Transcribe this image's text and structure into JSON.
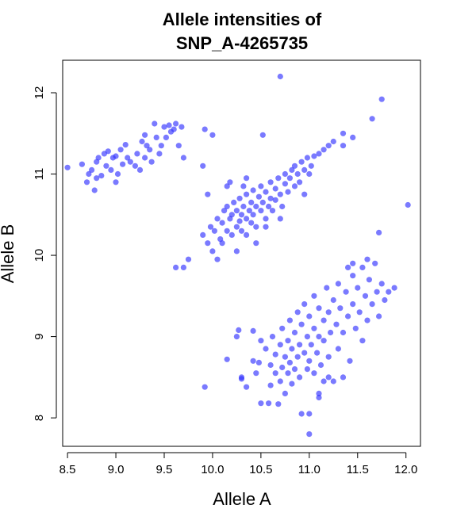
{
  "chart_data": {
    "type": "scatter",
    "title": [
      "Allele intensities of",
      "SNP_A-4265735"
    ],
    "xlabel": "Allele A",
    "ylabel": "Allele B",
    "xlim": [
      8.45,
      12.15
    ],
    "ylim": [
      7.65,
      12.4
    ],
    "x_ticks": [
      8.5,
      9.0,
      9.5,
      10.0,
      10.5,
      11.0,
      11.5,
      12.0
    ],
    "x_tick_labels": [
      "8.5",
      "9.0",
      "9.5",
      "10.0",
      "10.5",
      "11.0",
      "11.5",
      "12.0"
    ],
    "y_ticks": [
      8,
      9,
      10,
      11,
      12
    ],
    "y_tick_labels": [
      "8",
      "9",
      "10",
      "11",
      "12"
    ],
    "grid": false,
    "point_color": "#3333ff",
    "series": [
      {
        "points": [
          [
            8.5,
            11.08
          ],
          [
            8.65,
            11.12
          ],
          [
            8.7,
            10.9
          ],
          [
            8.72,
            11.0
          ],
          [
            8.75,
            11.05
          ],
          [
            8.78,
            10.8
          ],
          [
            8.8,
            10.95
          ],
          [
            8.8,
            11.15
          ],
          [
            8.82,
            11.2
          ],
          [
            8.85,
            10.98
          ],
          [
            8.88,
            11.25
          ],
          [
            8.9,
            11.1
          ],
          [
            8.92,
            11.28
          ],
          [
            8.95,
            11.05
          ],
          [
            8.97,
            11.2
          ],
          [
            9.0,
            11.22
          ],
          [
            9.0,
            10.9
          ],
          [
            9.02,
            11.0
          ],
          [
            9.05,
            11.3
          ],
          [
            9.07,
            11.12
          ],
          [
            9.1,
            11.36
          ],
          [
            9.12,
            11.2
          ],
          [
            9.15,
            11.15
          ],
          [
            9.2,
            11.1
          ],
          [
            9.22,
            11.25
          ],
          [
            9.25,
            11.05
          ],
          [
            9.27,
            11.4
          ],
          [
            9.3,
            11.48
          ],
          [
            9.3,
            11.2
          ],
          [
            9.32,
            11.35
          ],
          [
            9.35,
            11.3
          ],
          [
            9.37,
            11.15
          ],
          [
            9.4,
            11.62
          ],
          [
            9.42,
            11.45
          ],
          [
            9.45,
            11.25
          ],
          [
            9.47,
            11.35
          ],
          [
            9.5,
            11.58
          ],
          [
            9.52,
            11.45
          ],
          [
            9.55,
            11.6
          ],
          [
            9.57,
            11.52
          ],
          [
            9.6,
            11.55
          ],
          [
            9.62,
            11.62
          ],
          [
            9.65,
            11.35
          ],
          [
            9.68,
            11.58
          ],
          [
            9.7,
            11.2
          ],
          [
            9.92,
            11.55
          ],
          [
            10.0,
            11.48
          ],
          [
            10.52,
            11.48
          ],
          [
            9.95,
            10.75
          ],
          [
            9.9,
            11.1
          ],
          [
            9.62,
            9.85
          ],
          [
            9.75,
            9.95
          ],
          [
            9.7,
            9.85
          ],
          [
            9.9,
            10.25
          ],
          [
            9.95,
            10.15
          ],
          [
            9.98,
            10.35
          ],
          [
            10.0,
            10.05
          ],
          [
            10.02,
            10.3
          ],
          [
            10.05,
            10.45
          ],
          [
            10.08,
            10.2
          ],
          [
            10.1,
            10.4
          ],
          [
            10.1,
            10.15
          ],
          [
            10.12,
            10.55
          ],
          [
            10.15,
            10.3
          ],
          [
            10.15,
            10.6
          ],
          [
            10.18,
            10.45
          ],
          [
            10.2,
            10.25
          ],
          [
            10.2,
            10.5
          ],
          [
            10.22,
            10.65
          ],
          [
            10.25,
            10.35
          ],
          [
            10.25,
            10.55
          ],
          [
            10.28,
            10.42
          ],
          [
            10.28,
            10.7
          ],
          [
            10.3,
            10.5
          ],
          [
            10.3,
            10.3
          ],
          [
            10.32,
            10.6
          ],
          [
            10.35,
            10.45
          ],
          [
            10.35,
            10.75
          ],
          [
            10.38,
            10.55
          ],
          [
            10.4,
            10.4
          ],
          [
            10.4,
            10.65
          ],
          [
            10.42,
            10.8
          ],
          [
            10.42,
            10.5
          ],
          [
            10.45,
            10.6
          ],
          [
            10.45,
            10.35
          ],
          [
            10.48,
            10.72
          ],
          [
            10.5,
            10.55
          ],
          [
            10.5,
            10.85
          ],
          [
            10.52,
            10.65
          ],
          [
            10.55,
            10.45
          ],
          [
            10.55,
            10.78
          ],
          [
            10.58,
            10.6
          ],
          [
            10.6,
            10.9
          ],
          [
            10.6,
            10.7
          ],
          [
            10.62,
            10.55
          ],
          [
            10.65,
            10.82
          ],
          [
            10.65,
            10.68
          ],
          [
            10.68,
            10.95
          ],
          [
            10.7,
            10.75
          ],
          [
            10.72,
            10.6
          ],
          [
            10.75,
            10.88
          ],
          [
            10.75,
            11.0
          ],
          [
            10.78,
            10.78
          ],
          [
            10.8,
            10.95
          ],
          [
            10.82,
            11.05
          ],
          [
            10.85,
            10.85
          ],
          [
            10.85,
            11.1
          ],
          [
            10.88,
            11.0
          ],
          [
            10.9,
            10.9
          ],
          [
            10.92,
            11.15
          ],
          [
            10.95,
            11.05
          ],
          [
            10.98,
            11.2
          ],
          [
            11.0,
            11.0
          ],
          [
            11.02,
            11.1
          ],
          [
            11.05,
            11.22
          ],
          [
            11.1,
            11.25
          ],
          [
            11.15,
            11.3
          ],
          [
            11.2,
            11.35
          ],
          [
            11.25,
            11.4
          ],
          [
            11.35,
            11.35
          ],
          [
            11.45,
            11.45
          ],
          [
            10.45,
            10.15
          ],
          [
            10.35,
            10.25
          ],
          [
            10.15,
            10.85
          ],
          [
            10.25,
            10.05
          ],
          [
            10.55,
            10.35
          ],
          [
            10.05,
            9.95
          ],
          [
            10.95,
            10.75
          ],
          [
            10.7,
            10.45
          ],
          [
            10.18,
            10.9
          ],
          [
            10.35,
            10.95
          ],
          [
            9.92,
            8.38
          ],
          [
            10.15,
            8.72
          ],
          [
            10.25,
            9.0
          ],
          [
            10.27,
            9.08
          ],
          [
            10.3,
            8.48
          ],
          [
            10.35,
            8.38
          ],
          [
            10.42,
            8.7
          ],
          [
            10.42,
            9.07
          ],
          [
            10.45,
            8.55
          ],
          [
            10.48,
            8.68
          ],
          [
            10.5,
            8.18
          ],
          [
            10.5,
            8.95
          ],
          [
            10.55,
            8.85
          ],
          [
            10.58,
            8.18
          ],
          [
            10.6,
            8.65
          ],
          [
            10.6,
            8.4
          ],
          [
            10.62,
            9.0
          ],
          [
            10.65,
            8.78
          ],
          [
            10.65,
            8.55
          ],
          [
            10.68,
            8.17
          ],
          [
            10.7,
            8.9
          ],
          [
            10.7,
            8.45
          ],
          [
            10.72,
            8.62
          ],
          [
            10.72,
            9.1
          ],
          [
            10.75,
            8.75
          ],
          [
            10.75,
            8.3
          ],
          [
            10.78,
            8.95
          ],
          [
            10.78,
            8.55
          ],
          [
            10.8,
            9.2
          ],
          [
            10.8,
            8.68
          ],
          [
            10.82,
            8.85
          ],
          [
            10.82,
            8.42
          ],
          [
            10.85,
            9.05
          ],
          [
            10.85,
            8.6
          ],
          [
            10.88,
            9.3
          ],
          [
            10.88,
            8.75
          ],
          [
            10.9,
            8.9
          ],
          [
            10.9,
            8.5
          ],
          [
            10.92,
            9.15
          ],
          [
            10.92,
            8.05
          ],
          [
            10.95,
            8.8
          ],
          [
            10.95,
            9.4
          ],
          [
            10.98,
            9.0
          ],
          [
            10.98,
            8.6
          ],
          [
            11.0,
            9.25
          ],
          [
            11.0,
            8.7
          ],
          [
            11.0,
            7.8
          ],
          [
            11.02,
            8.9
          ],
          [
            11.05,
            9.5
          ],
          [
            11.05,
            9.1
          ],
          [
            11.05,
            8.55
          ],
          [
            11.08,
            8.8
          ],
          [
            11.1,
            9.35
          ],
          [
            11.1,
            9.0
          ],
          [
            11.1,
            8.3
          ],
          [
            11.12,
            8.65
          ],
          [
            11.15,
            9.2
          ],
          [
            11.15,
            8.95
          ],
          [
            11.18,
            9.6
          ],
          [
            11.2,
            9.3
          ],
          [
            11.2,
            8.75
          ],
          [
            11.22,
            9.05
          ],
          [
            11.25,
            9.45
          ],
          [
            11.25,
            8.45
          ],
          [
            11.28,
            9.15
          ],
          [
            11.3,
            9.65
          ],
          [
            11.3,
            8.85
          ],
          [
            11.32,
            9.35
          ],
          [
            11.35,
            9.05
          ],
          [
            11.38,
            9.55
          ],
          [
            11.4,
            9.25
          ],
          [
            11.42,
            8.7
          ],
          [
            11.45,
            9.75
          ],
          [
            11.45,
            9.4
          ],
          [
            11.48,
            9.1
          ],
          [
            11.5,
            9.6
          ],
          [
            11.52,
            9.3
          ],
          [
            11.55,
            9.85
          ],
          [
            11.55,
            8.95
          ],
          [
            11.58,
            9.5
          ],
          [
            11.6,
            9.2
          ],
          [
            11.62,
            9.7
          ],
          [
            11.65,
            9.4
          ],
          [
            11.68,
            9.9
          ],
          [
            11.7,
            9.55
          ],
          [
            11.72,
            9.25
          ],
          [
            11.75,
            9.65
          ],
          [
            11.78,
            9.45
          ],
          [
            11.82,
            9.55
          ],
          [
            11.88,
            9.6
          ],
          [
            11.0,
            8.05
          ],
          [
            11.1,
            8.25
          ],
          [
            11.2,
            8.5
          ],
          [
            11.35,
            8.5
          ],
          [
            11.15,
            8.45
          ],
          [
            10.3,
            8.5
          ],
          [
            11.4,
            9.85
          ],
          [
            11.45,
            9.9
          ],
          [
            11.6,
            9.95
          ]
        ]
      }
    ],
    "outliers": [
      [
        10.7,
        12.2
      ],
      [
        11.75,
        11.92
      ],
      [
        11.65,
        11.68
      ],
      [
        12.02,
        10.62
      ],
      [
        11.72,
        10.28
      ],
      [
        11.35,
        11.5
      ],
      [
        10.32,
        10.85
      ]
    ]
  }
}
